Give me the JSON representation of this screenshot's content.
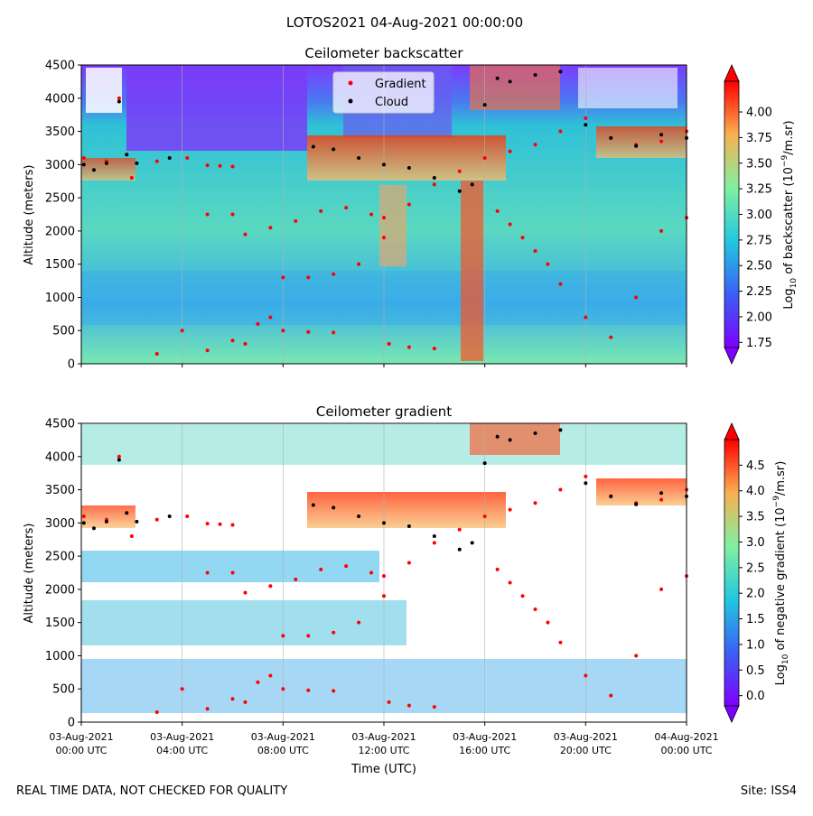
{
  "suptitle": "LOTOS2021 04-Aug-2021 00:00:00",
  "footer": {
    "left": "REAL TIME DATA, NOT CHECKED FOR QUALITY",
    "right": "Site: ISS4"
  },
  "chart_data": [
    {
      "type": "heatmap",
      "title": "Ceilometer backscatter",
      "xlabel": "",
      "ylabel": "Altitude (meters)",
      "ylim": [
        0,
        4500
      ],
      "yticks": [
        0,
        500,
        1000,
        1500,
        2000,
        2500,
        3000,
        3500,
        4000,
        4500
      ],
      "xlim_hours": [
        0,
        24
      ],
      "xticks_hours": [
        0,
        4,
        8,
        12,
        16,
        20,
        24
      ],
      "xtick_labels": [],
      "colorbar": {
        "label_prefix": "Log",
        "label_sub": "10",
        "label_mid": " of backscatter (10",
        "label_sup": "−9",
        "label_suffix": "/m.sr)",
        "range": [
          1.7,
          4.3
        ],
        "ticks": [
          "1.75",
          "2.00",
          "2.25",
          "2.50",
          "2.75",
          "3.00",
          "3.25",
          "3.50",
          "3.75",
          "4.00"
        ]
      },
      "legend": {
        "placement": "top-center",
        "entries": [
          {
            "label": "Gradient",
            "color": "#ff0000"
          },
          {
            "label": "Cloud",
            "color": "#000000"
          }
        ]
      },
      "series": [
        {
          "name": "Cloud",
          "color": "#000000",
          "points_hours_m": [
            [
              0.1,
              3000
            ],
            [
              0.5,
              2920
            ],
            [
              1,
              3020
            ],
            [
              1.5,
              3950
            ],
            [
              1.8,
              3150
            ],
            [
              2.2,
              3020
            ],
            [
              3.5,
              3100
            ],
            [
              9.2,
              3270
            ],
            [
              10,
              3230
            ],
            [
              11,
              3100
            ],
            [
              12,
              3000
            ],
            [
              13,
              2950
            ],
            [
              14,
              2800
            ],
            [
              15,
              2600
            ],
            [
              15.5,
              2700
            ],
            [
              16,
              3900
            ],
            [
              16.5,
              4300
            ],
            [
              17,
              4250
            ],
            [
              18,
              4350
            ],
            [
              19,
              4400
            ],
            [
              20,
              3600
            ],
            [
              21,
              3400
            ],
            [
              22,
              3280
            ],
            [
              23,
              3450
            ],
            [
              24,
              3400
            ]
          ]
        },
        {
          "name": "Gradient",
          "color": "#ff0000",
          "points_hours_m": [
            [
              0.1,
              3100
            ],
            [
              1,
              3050
            ],
            [
              1.5,
              4000
            ],
            [
              2,
              2800
            ],
            [
              3,
              3050
            ],
            [
              4.2,
              3100
            ],
            [
              5,
              2990
            ],
            [
              5.5,
              2980
            ],
            [
              6,
              2970
            ],
            [
              5,
              2250
            ],
            [
              6,
              2250
            ],
            [
              6.5,
              1950
            ],
            [
              7.5,
              2050
            ],
            [
              8.5,
              2150
            ],
            [
              9.5,
              2300
            ],
            [
              10.5,
              2350
            ],
            [
              11.5,
              2250
            ],
            [
              12,
              2200
            ],
            [
              8,
              1300
            ],
            [
              9,
              1300
            ],
            [
              10,
              1350
            ],
            [
              11,
              1500
            ],
            [
              12,
              1900
            ],
            [
              13,
              2400
            ],
            [
              14,
              2700
            ],
            [
              15,
              2900
            ],
            [
              16,
              3100
            ],
            [
              17,
              3200
            ],
            [
              18,
              3300
            ],
            [
              19,
              3500
            ],
            [
              20,
              3700
            ],
            [
              21,
              3400
            ],
            [
              22,
              3300
            ],
            [
              23,
              3350
            ],
            [
              24,
              3500
            ],
            [
              3,
              150
            ],
            [
              4,
              500
            ],
            [
              5,
              200
            ],
            [
              6,
              350
            ],
            [
              6.5,
              300
            ],
            [
              7,
              600
            ],
            [
              7.5,
              700
            ],
            [
              8,
              500
            ],
            [
              9,
              480
            ],
            [
              10,
              470
            ],
            [
              12.2,
              300
            ],
            [
              13,
              250
            ],
            [
              14,
              230
            ],
            [
              16.5,
              2300
            ],
            [
              17,
              2100
            ],
            [
              17.5,
              1900
            ],
            [
              18,
              1700
            ],
            [
              18.5,
              1500
            ],
            [
              19,
              1200
            ],
            [
              20,
              700
            ],
            [
              21,
              400
            ],
            [
              22,
              1000
            ],
            [
              23,
              2000
            ],
            [
              24,
              2200
            ]
          ]
        }
      ]
    },
    {
      "type": "heatmap",
      "title": "Ceilometer gradient",
      "xlabel": "Time (UTC)",
      "ylabel": "Altitude (meters)",
      "ylim": [
        0,
        4500
      ],
      "yticks": [
        0,
        500,
        1000,
        1500,
        2000,
        2500,
        3000,
        3500,
        4000,
        4500
      ],
      "xlim_hours": [
        0,
        24
      ],
      "xticks_hours": [
        0,
        4,
        8,
        12,
        16,
        20,
        24
      ],
      "xtick_labels": [
        [
          "03-Aug-2021",
          "00:00 UTC"
        ],
        [
          "03-Aug-2021",
          "04:00 UTC"
        ],
        [
          "03-Aug-2021",
          "08:00 UTC"
        ],
        [
          "03-Aug-2021",
          "12:00 UTC"
        ],
        [
          "03-Aug-2021",
          "16:00 UTC"
        ],
        [
          "03-Aug-2021",
          "20:00 UTC"
        ],
        [
          "04-Aug-2021",
          "00:00 UTC"
        ]
      ],
      "colorbar": {
        "label_prefix": "Log",
        "label_sub": "10",
        "label_mid": " of negative gradient (10",
        "label_sup": "−9",
        "label_suffix": "/m.sr)",
        "range": [
          -0.2,
          5.0
        ],
        "ticks": [
          "0.0",
          "0.5",
          "1.0",
          "1.5",
          "2.0",
          "2.5",
          "3.0",
          "3.5",
          "4.0",
          "4.5"
        ]
      },
      "series": [
        {
          "name": "Cloud",
          "color": "#000000",
          "points_hours_m": [
            [
              0.1,
              3000
            ],
            [
              0.5,
              2920
            ],
            [
              1,
              3020
            ],
            [
              1.5,
              3950
            ],
            [
              1.8,
              3150
            ],
            [
              2.2,
              3020
            ],
            [
              3.5,
              3100
            ],
            [
              9.2,
              3270
            ],
            [
              10,
              3230
            ],
            [
              11,
              3100
            ],
            [
              12,
              3000
            ],
            [
              13,
              2950
            ],
            [
              14,
              2800
            ],
            [
              15,
              2600
            ],
            [
              15.5,
              2700
            ],
            [
              16,
              3900
            ],
            [
              16.5,
              4300
            ],
            [
              17,
              4250
            ],
            [
              18,
              4350
            ],
            [
              19,
              4400
            ],
            [
              20,
              3600
            ],
            [
              21,
              3400
            ],
            [
              22,
              3280
            ],
            [
              23,
              3450
            ],
            [
              24,
              3400
            ]
          ]
        },
        {
          "name": "Gradient",
          "color": "#ff0000",
          "points_hours_m": [
            [
              0.1,
              3100
            ],
            [
              1,
              3050
            ],
            [
              1.5,
              4000
            ],
            [
              2,
              2800
            ],
            [
              3,
              3050
            ],
            [
              4.2,
              3100
            ],
            [
              5,
              2990
            ],
            [
              5.5,
              2980
            ],
            [
              6,
              2970
            ],
            [
              5,
              2250
            ],
            [
              6,
              2250
            ],
            [
              6.5,
              1950
            ],
            [
              7.5,
              2050
            ],
            [
              8.5,
              2150
            ],
            [
              9.5,
              2300
            ],
            [
              10.5,
              2350
            ],
            [
              11.5,
              2250
            ],
            [
              12,
              2200
            ],
            [
              8,
              1300
            ],
            [
              9,
              1300
            ],
            [
              10,
              1350
            ],
            [
              11,
              1500
            ],
            [
              12,
              1900
            ],
            [
              13,
              2400
            ],
            [
              14,
              2700
            ],
            [
              15,
              2900
            ],
            [
              16,
              3100
            ],
            [
              17,
              3200
            ],
            [
              18,
              3300
            ],
            [
              19,
              3500
            ],
            [
              20,
              3700
            ],
            [
              21,
              3400
            ],
            [
              22,
              3300
            ],
            [
              23,
              3350
            ],
            [
              24,
              3500
            ],
            [
              3,
              150
            ],
            [
              4,
              500
            ],
            [
              5,
              200
            ],
            [
              6,
              350
            ],
            [
              6.5,
              300
            ],
            [
              7,
              600
            ],
            [
              7.5,
              700
            ],
            [
              8,
              500
            ],
            [
              9,
              480
            ],
            [
              10,
              470
            ],
            [
              12.2,
              300
            ],
            [
              13,
              250
            ],
            [
              14,
              230
            ],
            [
              16.5,
              2300
            ],
            [
              17,
              2100
            ],
            [
              17.5,
              1900
            ],
            [
              18,
              1700
            ],
            [
              18.5,
              1500
            ],
            [
              19,
              1200
            ],
            [
              20,
              700
            ],
            [
              21,
              400
            ],
            [
              22,
              1000
            ],
            [
              23,
              2000
            ],
            [
              24,
              2200
            ]
          ]
        }
      ]
    }
  ]
}
